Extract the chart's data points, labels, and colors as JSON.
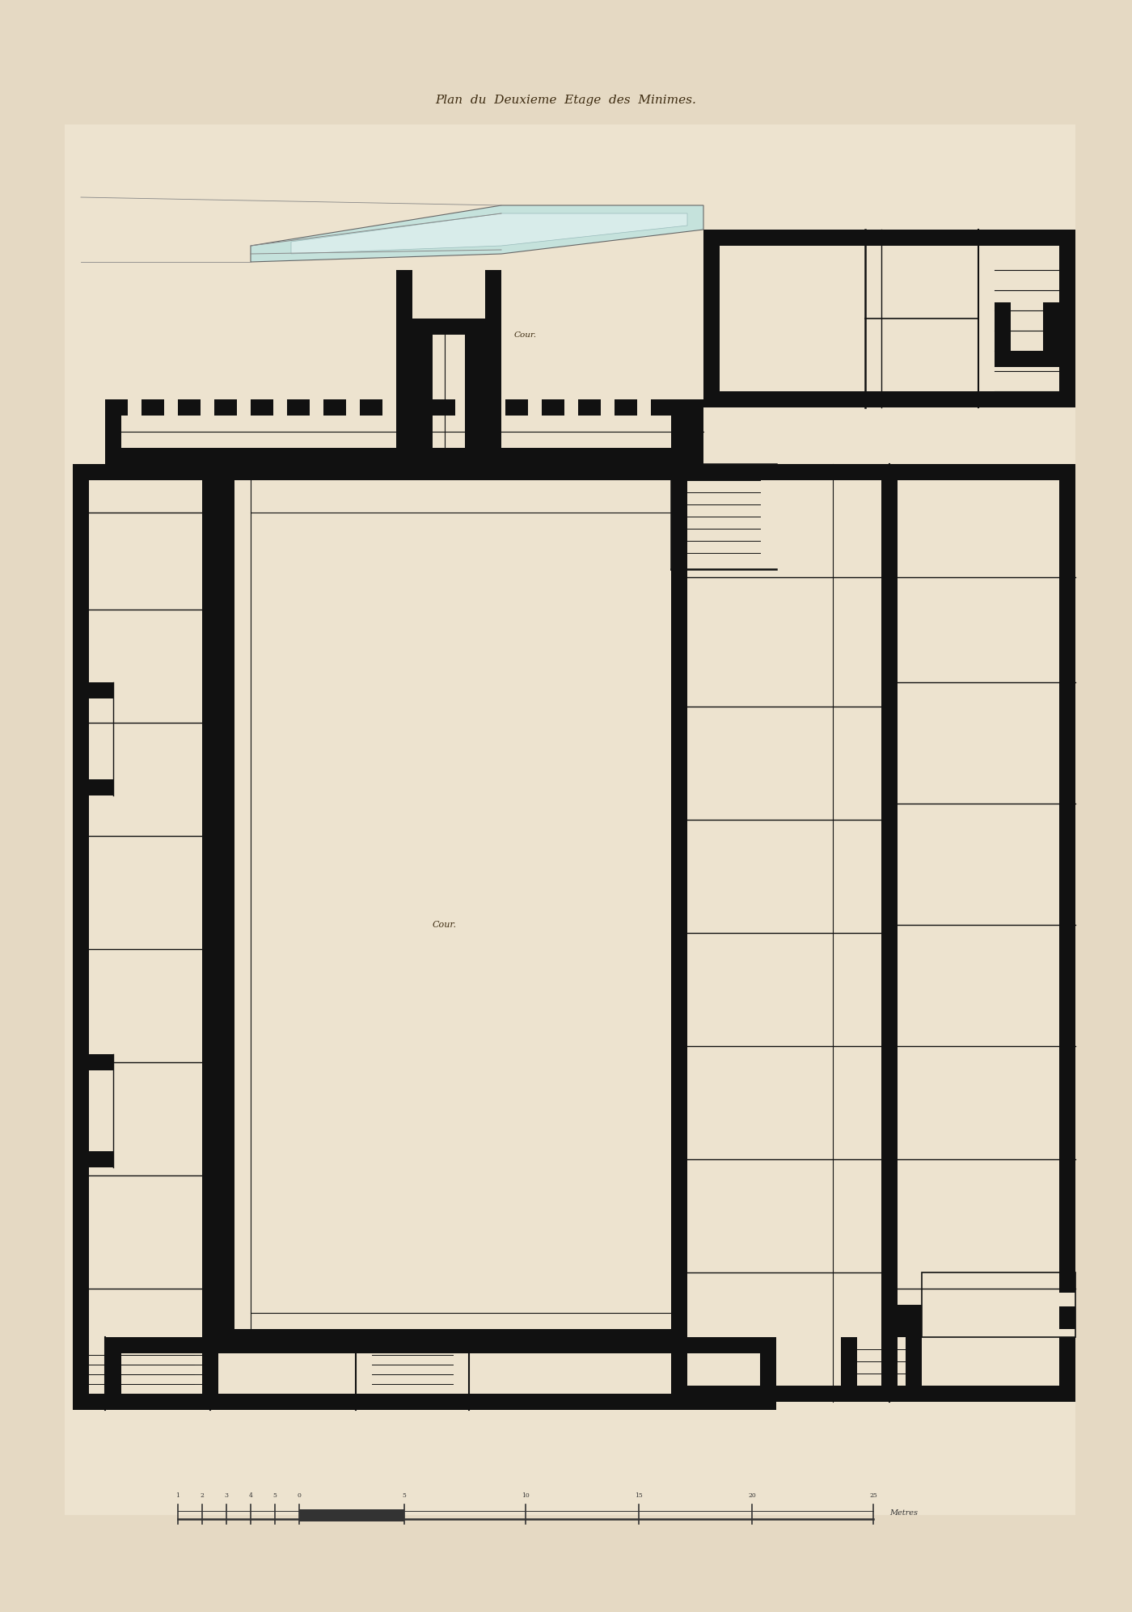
{
  "title": "Plan  du  Deuxieme  Etage  des  Minimes.",
  "bg_color": "#e5d9c3",
  "paper_color": "#ede3cf",
  "wall_color": "#111111",
  "fill_color": "#ede3cf",
  "skylight_fill": "#c5e2dc",
  "skylight_fill2": "#d8ecea",
  "court_top_label": "Cour.",
  "court_main_label": "Cour.",
  "scale_label": "Metres"
}
